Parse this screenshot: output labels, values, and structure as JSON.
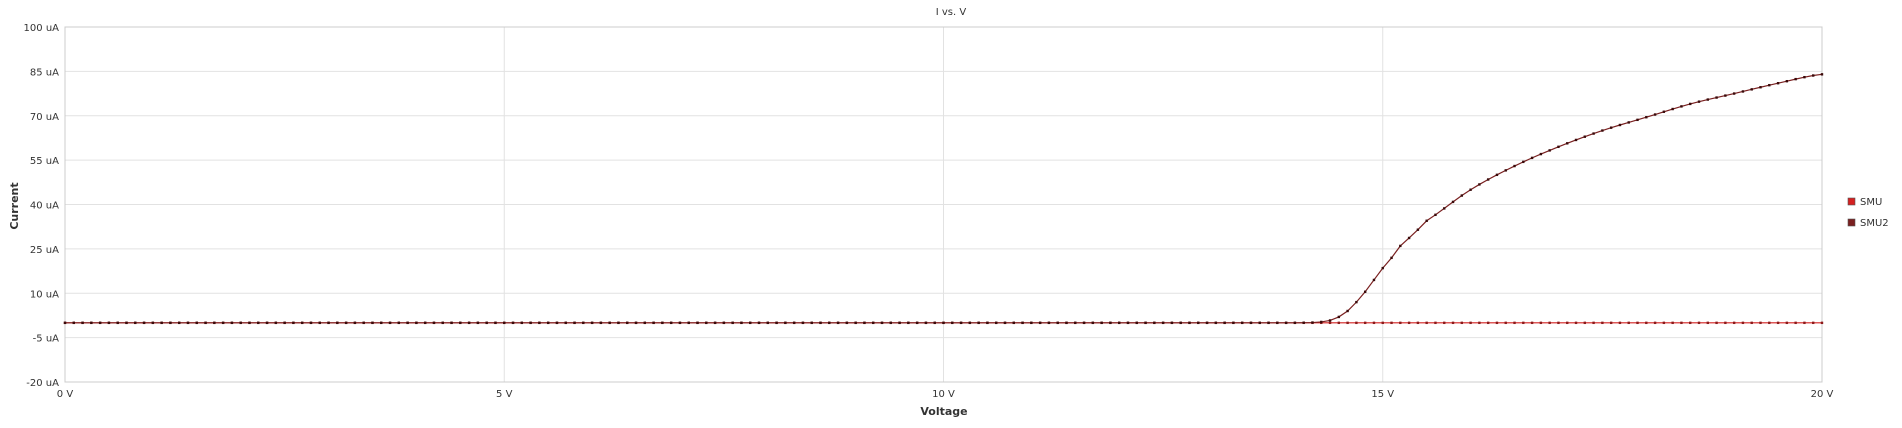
{
  "chart_data": {
    "type": "line",
    "title": "I vs. V",
    "xlabel": "Voltage",
    "ylabel": "Current",
    "xlim": [
      0,
      20
    ],
    "ylim": [
      -20,
      100
    ],
    "x_ticks": [
      0,
      5,
      10,
      15,
      20
    ],
    "x_tick_labels": [
      "0 V",
      "5 V",
      "10 V",
      "15 V",
      "20 V"
    ],
    "y_ticks": [
      -20,
      -5,
      10,
      25,
      40,
      55,
      70,
      85,
      100
    ],
    "y_tick_labels": [
      "-20 uA",
      "-5 uA",
      "10 uA",
      "25 uA",
      "40 uA",
      "55 uA",
      "70 uA",
      "85 uA",
      "100 uA"
    ],
    "grid": true,
    "legend_position": "right",
    "x_step": 0.1,
    "series": [
      {
        "name": "SMU",
        "color": "#d42020",
        "marker_color": "#8b1a1a",
        "x_start": 0,
        "x_end": 20,
        "x_step": 0.1,
        "constant_value": 0
      },
      {
        "name": "SMU2",
        "color": "#7a2020",
        "marker_color": "#3a0a0a",
        "x": [
          0,
          14.0,
          14.2,
          14.3,
          14.4,
          14.5,
          14.6,
          14.7,
          14.8,
          14.9,
          15.0,
          15.2,
          15.5,
          16.0,
          16.5,
          17.0,
          17.5,
          18.0,
          18.5,
          19.0,
          19.5,
          20.0
        ],
        "values": [
          0,
          0,
          0.1,
          0.3,
          0.8,
          2.0,
          4.0,
          7.0,
          10.5,
          14.5,
          18.5,
          26.0,
          34.5,
          45.0,
          53.0,
          59.5,
          65.0,
          69.5,
          74.0,
          77.5,
          81.0,
          84.0
        ]
      }
    ]
  }
}
